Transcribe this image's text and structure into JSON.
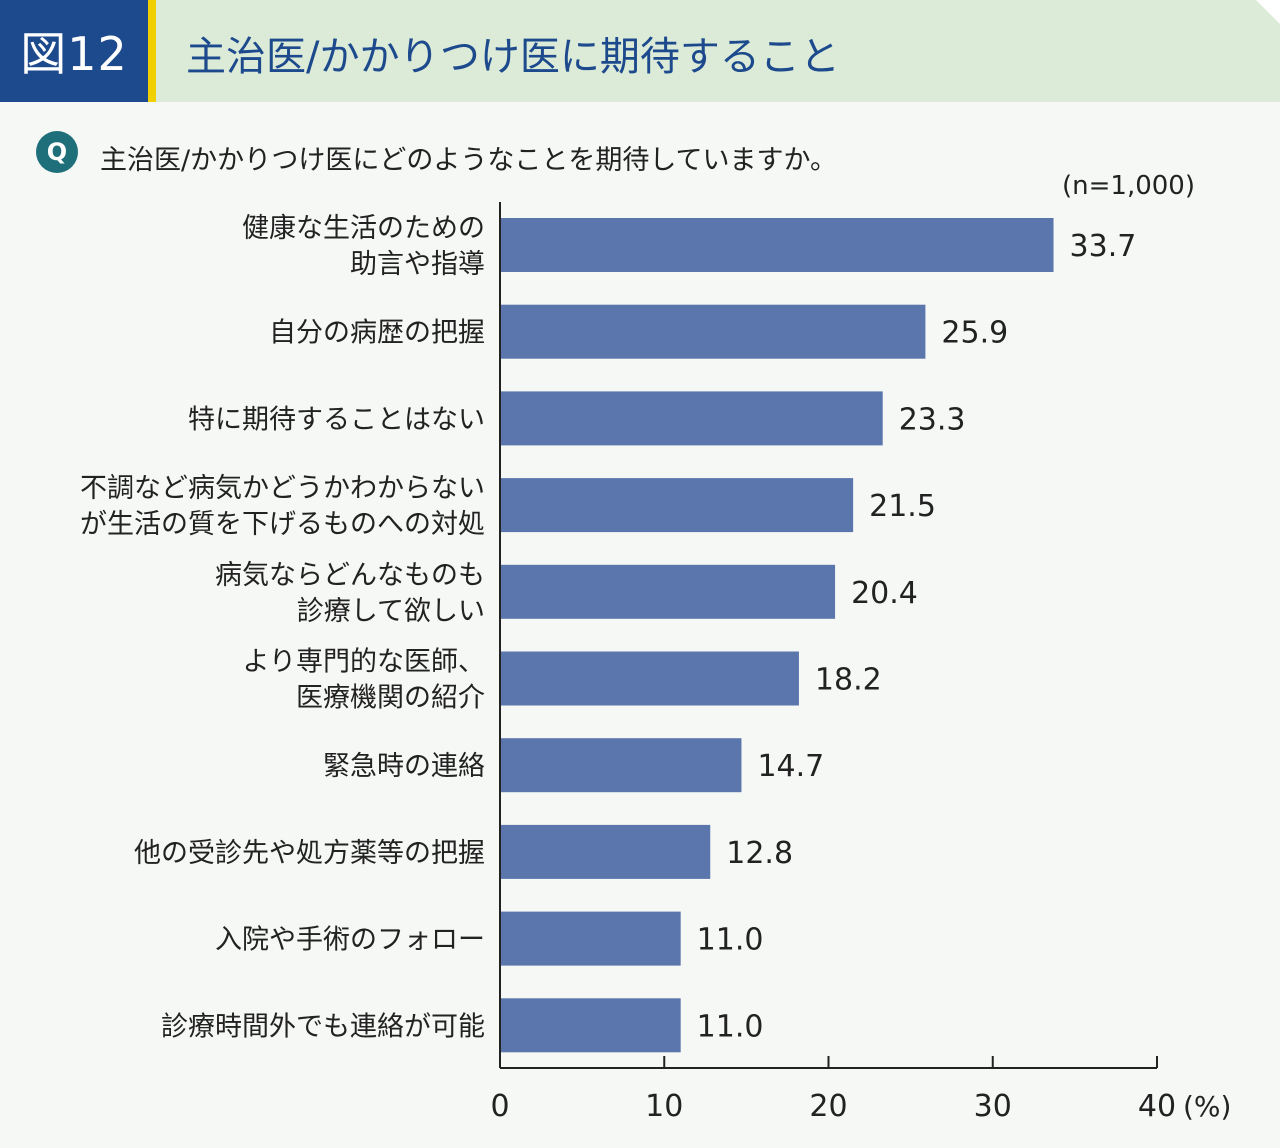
{
  "figure": {
    "number": "図12",
    "title": "主治医/かかりつけ医に期待すること"
  },
  "question": {
    "badge": "Q",
    "text": "主治医/かかりつけ医にどのようなことを期待していますか。"
  },
  "sample_size": "(n=1,000)",
  "colors": {
    "header_bg": "#dcebd8",
    "figure_box": "#1d4a8c",
    "accent_stripe": "#f0d000",
    "bar": "#5b76ad",
    "q_badge": "#1f6f7a"
  },
  "chart_data": {
    "type": "bar",
    "orientation": "horizontal",
    "categories": [
      [
        "健康な生活のための",
        "助言や指導"
      ],
      [
        "自分の病歴の把握"
      ],
      [
        "特に期待することはない"
      ],
      [
        "不調など病気かどうかわからない",
        "が生活の質を下げるものへの対処"
      ],
      [
        "病気ならどんなものも",
        "診療して欲しい"
      ],
      [
        "より専門的な医師、",
        "医療機関の紹介"
      ],
      [
        "緊急時の連絡"
      ],
      [
        "他の受診先や処方薬等の把握"
      ],
      [
        "入院や手術のフォロー"
      ],
      [
        "診療時間外でも連絡が可能"
      ]
    ],
    "values": [
      33.7,
      25.9,
      23.3,
      21.5,
      20.4,
      18.2,
      14.7,
      12.8,
      11.0,
      11.0
    ],
    "value_labels": [
      "33.7",
      "25.9",
      "23.3",
      "21.5",
      "20.4",
      "18.2",
      "14.7",
      "12.8",
      "11.0",
      "11.0"
    ],
    "xlim": [
      0,
      40
    ],
    "xticks": [
      0,
      10,
      20,
      30,
      40
    ],
    "xtick_labels": [
      "0",
      "10",
      "20",
      "30",
      "40"
    ],
    "unit_label": "(%)",
    "grid": false,
    "legend": "none"
  }
}
